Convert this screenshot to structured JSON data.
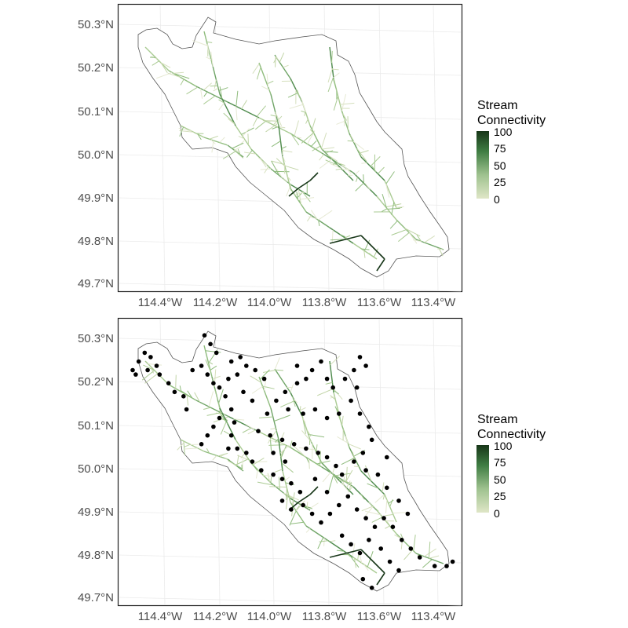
{
  "chart_data": [
    {
      "type": "map",
      "panel": "stream-network",
      "xlabels": [
        "114.4°W",
        "114.2°W",
        "114.0°W",
        "113.8°W",
        "113.6°W",
        "113.4°W"
      ],
      "ylabels": [
        "50.3°N",
        "50.2°N",
        "50.1°N",
        "50.0°N",
        "49.9°N",
        "49.8°N",
        "49.7°N"
      ],
      "xlim": [
        -114.5,
        -113.35
      ],
      "ylim": [
        49.68,
        50.34
      ],
      "grid": true,
      "legend": {
        "title_line1": "Stream",
        "title_line2": "Connectivity",
        "ticks": [
          "100",
          "75",
          "50",
          "25",
          "0"
        ],
        "placement": "right",
        "range": [
          0,
          100
        ],
        "color_low": "#dfe6c7",
        "color_high": "#173618"
      },
      "points": []
    },
    {
      "type": "map",
      "panel": "stream-network-with-sites",
      "xlabels": [
        "114.4°W",
        "114.2°W",
        "114.0°W",
        "113.8°W",
        "113.6°W",
        "113.4°W"
      ],
      "ylabels": [
        "50.3°N",
        "50.2°N",
        "50.1°N",
        "50.0°N",
        "49.9°N",
        "49.8°N",
        "49.7°N"
      ],
      "xlim": [
        -114.5,
        -113.35
      ],
      "ylim": [
        49.68,
        50.34
      ],
      "grid": true,
      "legend": {
        "title_line1": "Stream",
        "title_line2": "Connectivity",
        "ticks": [
          "100",
          "75",
          "50",
          "25",
          "0"
        ],
        "placement": "right",
        "range": [
          0,
          100
        ],
        "color_low": "#dfe6c7",
        "color_high": "#173618"
      },
      "point_color": "#000000",
      "points": [
        [
          -114.45,
          50.22
        ],
        [
          -114.43,
          50.24
        ],
        [
          -114.41,
          50.26
        ],
        [
          -114.39,
          50.25
        ],
        [
          -114.37,
          50.23
        ],
        [
          -114.44,
          50.21
        ],
        [
          -114.4,
          50.22
        ],
        [
          -114.36,
          50.21
        ],
        [
          -114.33,
          50.19
        ],
        [
          -114.31,
          50.17
        ],
        [
          -114.28,
          50.16
        ],
        [
          -114.27,
          50.13
        ],
        [
          -114.21,
          50.3
        ],
        [
          -114.19,
          50.28
        ],
        [
          -114.17,
          50.26
        ],
        [
          -114.2,
          50.21
        ],
        [
          -114.18,
          50.19
        ],
        [
          -114.16,
          50.18
        ],
        [
          -114.13,
          50.2
        ],
        [
          -114.1,
          50.21
        ],
        [
          -114.07,
          50.23
        ],
        [
          -114.04,
          50.22
        ],
        [
          -114.01,
          50.2
        ],
        [
          -114.09,
          50.25
        ],
        [
          -114.12,
          50.24
        ],
        [
          -114.14,
          50.16
        ],
        [
          -114.12,
          50.13
        ],
        [
          -114.11,
          50.1
        ],
        [
          -114.12,
          50.07
        ],
        [
          -114.13,
          50.04
        ],
        [
          -114.16,
          50.11
        ],
        [
          -114.18,
          50.09
        ],
        [
          -114.2,
          50.07
        ],
        [
          -114.22,
          50.05
        ],
        [
          -114.1,
          50.04
        ],
        [
          -114.07,
          50.03
        ],
        [
          -114.05,
          50.01
        ],
        [
          -114.02,
          49.99
        ],
        [
          -113.98,
          49.98
        ],
        [
          -113.95,
          49.97
        ],
        [
          -113.92,
          49.96
        ],
        [
          -113.89,
          49.94
        ],
        [
          -114.03,
          50.08
        ],
        [
          -113.99,
          50.07
        ],
        [
          -113.95,
          50.06
        ],
        [
          -113.91,
          50.05
        ],
        [
          -113.87,
          50.04
        ],
        [
          -113.83,
          50.03
        ],
        [
          -113.8,
          50.02
        ],
        [
          -113.77,
          50.0
        ],
        [
          -113.75,
          49.98
        ],
        [
          -114.0,
          50.12
        ],
        [
          -113.97,
          50.15
        ],
        [
          -113.94,
          50.17
        ],
        [
          -113.9,
          50.19
        ],
        [
          -113.93,
          50.13
        ],
        [
          -113.88,
          50.12
        ],
        [
          -113.84,
          50.13
        ],
        [
          -113.8,
          50.11
        ],
        [
          -113.76,
          50.12
        ],
        [
          -113.85,
          50.22
        ],
        [
          -113.82,
          50.24
        ],
        [
          -113.8,
          50.2
        ],
        [
          -113.78,
          50.18
        ],
        [
          -113.74,
          50.2
        ],
        [
          -113.71,
          50.22
        ],
        [
          -113.69,
          50.25
        ],
        [
          -113.67,
          50.23
        ],
        [
          -113.7,
          50.18
        ],
        [
          -113.72,
          50.15
        ],
        [
          -113.69,
          50.12
        ],
        [
          -113.66,
          50.09
        ],
        [
          -113.65,
          50.06
        ],
        [
          -113.68,
          50.03
        ],
        [
          -113.71,
          50.01
        ],
        [
          -113.67,
          49.99
        ],
        [
          -113.63,
          49.98
        ],
        [
          -113.6,
          49.95
        ],
        [
          -113.95,
          49.92
        ],
        [
          -113.92,
          49.9
        ],
        [
          -113.88,
          49.91
        ],
        [
          -113.85,
          49.89
        ],
        [
          -113.82,
          49.87
        ],
        [
          -113.79,
          49.89
        ],
        [
          -113.76,
          49.91
        ],
        [
          -113.73,
          49.93
        ],
        [
          -113.7,
          49.9
        ],
        [
          -113.67,
          49.88
        ],
        [
          -113.64,
          49.86
        ],
        [
          -113.61,
          49.88
        ],
        [
          -113.58,
          49.86
        ],
        [
          -113.55,
          49.83
        ],
        [
          -113.52,
          49.81
        ],
        [
          -113.49,
          49.79
        ],
        [
          -113.75,
          49.84
        ],
        [
          -113.72,
          49.82
        ],
        [
          -113.69,
          49.8
        ],
        [
          -113.66,
          49.83
        ],
        [
          -113.62,
          49.81
        ],
        [
          -113.59,
          49.78
        ],
        [
          -113.56,
          49.76
        ],
        [
          -113.68,
          49.74
        ],
        [
          -113.65,
          49.72
        ],
        [
          -113.44,
          49.77
        ],
        [
          -113.4,
          49.77
        ],
        [
          -113.38,
          49.78
        ],
        [
          -113.9,
          50.23
        ],
        [
          -113.87,
          50.2
        ],
        [
          -114.25,
          50.22
        ],
        [
          -114.22,
          50.23
        ],
        [
          -114.08,
          50.17
        ],
        [
          -114.05,
          50.15
        ],
        [
          -113.98,
          50.03
        ],
        [
          -113.94,
          50.01
        ],
        [
          -113.6,
          50.02
        ],
        [
          -113.56,
          49.92
        ],
        [
          -113.53,
          49.89
        ],
        [
          -113.8,
          49.94
        ],
        [
          -113.84,
          49.97
        ]
      ]
    }
  ]
}
